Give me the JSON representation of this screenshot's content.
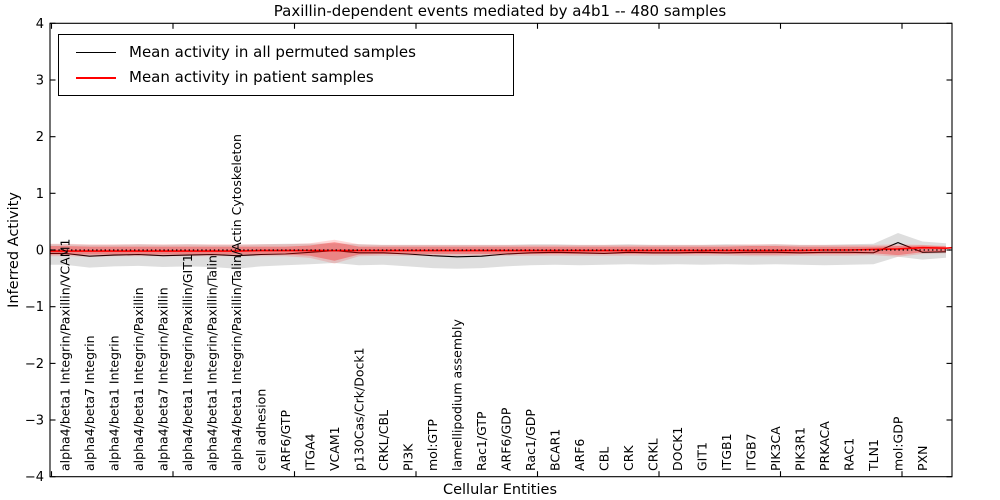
{
  "chart_data": {
    "type": "line",
    "title": "Paxillin-dependent events mediated by a4b1 -- 480 samples",
    "xlabel": "Cellular Entities",
    "ylabel": "Inferred Activity",
    "ylim": [
      -4,
      4
    ],
    "yticks": [
      -4,
      -3,
      -2,
      -1,
      0,
      1,
      2,
      3,
      4
    ],
    "grid": false,
    "legend_position": "upper left",
    "zero_line": {
      "style": "dotted",
      "color": "#000000",
      "y": 0
    },
    "categories": [
      "alpha4/beta1 Integrin/Paxillin/VCAM1",
      "alpha4/beta7 Integrin",
      "alpha4/beta1 Integrin",
      "alpha4/beta1 Integrin/Paxillin",
      "alpha4/beta7 Integrin/Paxillin",
      "alpha4/beta1 Integrin/Paxillin/GIT1",
      "alpha4/beta1 Integrin/Paxillin/Talin",
      "alpha4/beta1 Integrin/Paxillin/Talin/Actin Cytoskeleton",
      "cell adhesion",
      "ARF6/GTP",
      "ITGA4",
      "VCAM1",
      "p130Cas/Crk/Dock1",
      "CRKL/CBL",
      "PI3K",
      "mol:GTP",
      "lamellipodium assembly",
      "Rac1/GTP",
      "ARF6/GDP",
      "Rac1/GDP",
      "BCAR1",
      "ARF6",
      "CBL",
      "CRK",
      "CRKL",
      "DOCK1",
      "GIT1",
      "ITGB1",
      "ITGB7",
      "PIK3CA",
      "PIK3R1",
      "PRKACA",
      "RAC1",
      "TLN1",
      "mol:GDP",
      "PXN"
    ],
    "series": [
      {
        "name": "Mean activity in all permuted samples",
        "color": "#000000",
        "values": [
          -0.06,
          -0.11,
          -0.09,
          -0.08,
          -0.1,
          -0.09,
          -0.08,
          -0.1,
          -0.08,
          -0.07,
          -0.04,
          -0.01,
          -0.05,
          -0.05,
          -0.07,
          -0.1,
          -0.12,
          -0.11,
          -0.07,
          -0.05,
          -0.04,
          -0.05,
          -0.06,
          -0.04,
          -0.05,
          -0.05,
          -0.04,
          -0.05,
          -0.04,
          -0.04,
          -0.05,
          -0.04,
          -0.04,
          -0.05,
          0.13,
          -0.04
        ]
      },
      {
        "name": "Mean activity in patient samples",
        "color": "#ff0000",
        "values": [
          -0.02,
          -0.02,
          -0.02,
          -0.02,
          -0.02,
          -0.02,
          -0.02,
          -0.02,
          -0.01,
          -0.01,
          -0.01,
          -0.01,
          -0.01,
          -0.01,
          -0.01,
          -0.01,
          -0.01,
          -0.01,
          -0.01,
          -0.01,
          -0.01,
          -0.01,
          -0.01,
          -0.01,
          -0.01,
          -0.01,
          -0.01,
          -0.01,
          -0.01,
          -0.01,
          -0.01,
          0.0,
          0.0,
          0.01,
          0.02,
          0.04
        ]
      }
    ],
    "bands": [
      {
        "name": "permuted samples range",
        "color": "#000000",
        "opacity": 0.13,
        "low": [
          -0.26,
          -0.31,
          -0.29,
          -0.28,
          -0.3,
          -0.29,
          -0.3,
          -0.33,
          -0.29,
          -0.27,
          -0.25,
          -0.23,
          -0.27,
          -0.26,
          -0.29,
          -0.32,
          -0.33,
          -0.32,
          -0.29,
          -0.27,
          -0.26,
          -0.27,
          -0.26,
          -0.25,
          -0.26,
          -0.25,
          -0.26,
          -0.25,
          -0.26,
          -0.25,
          -0.26,
          -0.27,
          -0.26,
          -0.25,
          -0.12,
          -0.17
        ],
        "high": [
          0.1,
          0.09,
          0.09,
          0.1,
          0.09,
          0.1,
          0.09,
          0.09,
          0.1,
          0.11,
          0.11,
          0.12,
          0.1,
          0.09,
          0.09,
          0.09,
          0.09,
          0.09,
          0.09,
          0.1,
          0.1,
          0.09,
          0.09,
          0.1,
          0.09,
          0.09,
          0.09,
          0.1,
          0.09,
          0.1,
          0.09,
          0.09,
          0.1,
          0.11,
          0.3,
          0.15
        ]
      },
      {
        "name": "patient samples range (outer)",
        "color": "#ff0000",
        "opacity": 0.15,
        "low": [
          -0.11,
          -0.12,
          -0.11,
          -0.11,
          -0.11,
          -0.11,
          -0.11,
          -0.11,
          -0.11,
          -0.11,
          -0.14,
          -0.24,
          -0.11,
          -0.1,
          -0.1,
          -0.1,
          -0.1,
          -0.1,
          -0.1,
          -0.1,
          -0.1,
          -0.1,
          -0.1,
          -0.1,
          -0.1,
          -0.1,
          -0.1,
          -0.1,
          -0.11,
          -0.11,
          -0.1,
          -0.1,
          -0.1,
          -0.09,
          -0.12,
          -0.07
        ],
        "high": [
          0.11,
          0.1,
          0.1,
          0.1,
          0.1,
          0.1,
          0.1,
          0.1,
          0.1,
          0.1,
          0.12,
          0.18,
          0.1,
          0.09,
          0.09,
          0.09,
          0.09,
          0.09,
          0.09,
          0.09,
          0.09,
          0.09,
          0.09,
          0.09,
          0.09,
          0.09,
          0.09,
          0.09,
          0.1,
          0.1,
          0.09,
          0.09,
          0.09,
          0.09,
          0.1,
          0.09
        ]
      },
      {
        "name": "patient samples range (inner)",
        "color": "#ff0000",
        "opacity": 0.3,
        "low": [
          -0.08,
          -0.08,
          -0.08,
          -0.08,
          -0.08,
          -0.08,
          -0.08,
          -0.08,
          -0.08,
          -0.08,
          -0.1,
          -0.19,
          -0.08,
          -0.07,
          -0.07,
          -0.07,
          -0.07,
          -0.07,
          -0.07,
          -0.07,
          -0.07,
          -0.07,
          -0.07,
          -0.07,
          -0.07,
          -0.07,
          -0.07,
          -0.07,
          -0.08,
          -0.08,
          -0.07,
          -0.07,
          -0.07,
          -0.06,
          -0.09,
          -0.04
        ],
        "high": [
          0.07,
          0.06,
          0.06,
          0.06,
          0.06,
          0.06,
          0.06,
          0.06,
          0.06,
          0.06,
          0.08,
          0.14,
          0.06,
          0.06,
          0.06,
          0.06,
          0.06,
          0.06,
          0.06,
          0.06,
          0.06,
          0.06,
          0.06,
          0.06,
          0.06,
          0.06,
          0.06,
          0.06,
          0.07,
          0.07,
          0.06,
          0.06,
          0.06,
          0.06,
          0.07,
          0.08
        ]
      }
    ]
  }
}
